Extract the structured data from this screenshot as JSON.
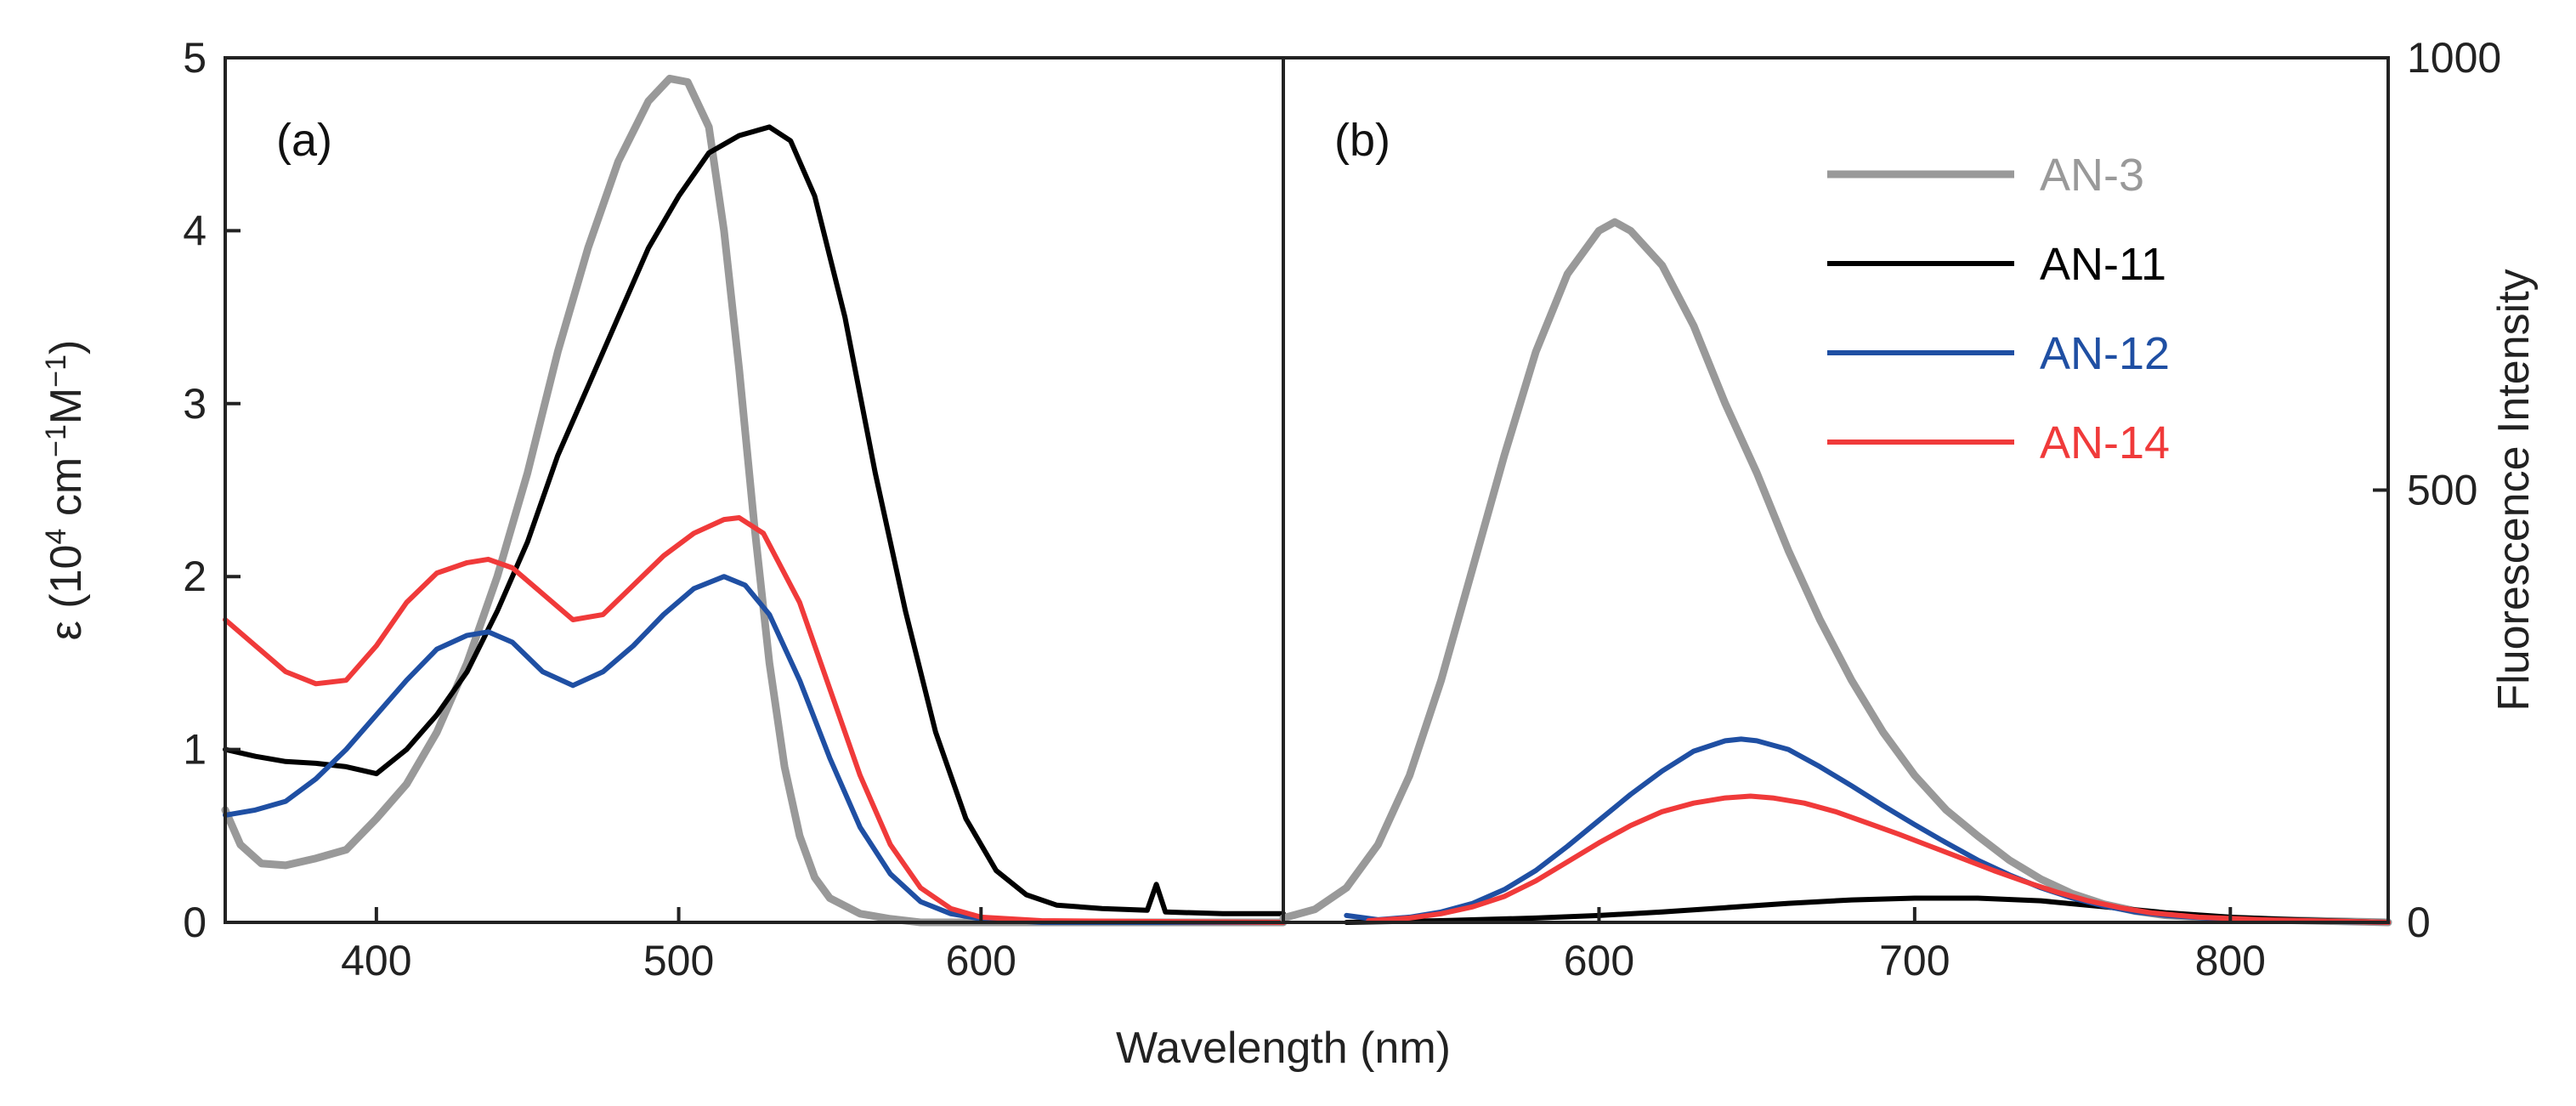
{
  "chart_data": [
    {
      "panel": "(a)",
      "type": "line",
      "xlabel": "Wavelength (nm)",
      "ylabel": "ε (10⁴ cm⁻¹M⁻¹)",
      "ylabel_parts": {
        "main": "ε (10",
        "sup1": "4",
        "mid": " cm",
        "sup2": "−1",
        "m": "M",
        "sup3": "−1",
        "end": ")"
      },
      "xlim": [
        350,
        700
      ],
      "ylim": [
        0,
        5
      ],
      "xticks": [
        "400",
        "500",
        "600"
      ],
      "xtick_values": [
        400,
        500,
        600
      ],
      "yticks": [
        "0",
        "1",
        "2",
        "3",
        "4",
        "5"
      ],
      "ytick_values": [
        0,
        1,
        2,
        3,
        4,
        5
      ],
      "series": [
        {
          "name": "AN-3",
          "color": "#999999",
          "width": 9,
          "points": [
            [
              350,
              0.65
            ],
            [
              355,
              0.45
            ],
            [
              362,
              0.34
            ],
            [
              370,
              0.33
            ],
            [
              380,
              0.37
            ],
            [
              390,
              0.42
            ],
            [
              400,
              0.6
            ],
            [
              410,
              0.8
            ],
            [
              420,
              1.1
            ],
            [
              430,
              1.5
            ],
            [
              440,
              2.0
            ],
            [
              450,
              2.6
            ],
            [
              460,
              3.3
            ],
            [
              470,
              3.9
            ],
            [
              480,
              4.4
            ],
            [
              490,
              4.75
            ],
            [
              497,
              4.88
            ],
            [
              503,
              4.86
            ],
            [
              510,
              4.6
            ],
            [
              515,
              4.0
            ],
            [
              520,
              3.2
            ],
            [
              525,
              2.3
            ],
            [
              530,
              1.5
            ],
            [
              535,
              0.9
            ],
            [
              540,
              0.5
            ],
            [
              545,
              0.26
            ],
            [
              550,
              0.14
            ],
            [
              560,
              0.05
            ],
            [
              570,
              0.02
            ],
            [
              580,
              0.0
            ],
            [
              700,
              0.0
            ]
          ]
        },
        {
          "name": "AN-11",
          "color": "#000000",
          "width": 6,
          "points": [
            [
              350,
              1.0
            ],
            [
              360,
              0.96
            ],
            [
              370,
              0.93
            ],
            [
              380,
              0.92
            ],
            [
              390,
              0.9
            ],
            [
              400,
              0.86
            ],
            [
              410,
              1.0
            ],
            [
              420,
              1.2
            ],
            [
              430,
              1.45
            ],
            [
              440,
              1.8
            ],
            [
              450,
              2.2
            ],
            [
              460,
              2.7
            ],
            [
              470,
              3.1
            ],
            [
              480,
              3.5
            ],
            [
              490,
              3.9
            ],
            [
              500,
              4.2
            ],
            [
              510,
              4.45
            ],
            [
              520,
              4.55
            ],
            [
              530,
              4.6
            ],
            [
              537,
              4.52
            ],
            [
              545,
              4.2
            ],
            [
              555,
              3.5
            ],
            [
              565,
              2.6
            ],
            [
              575,
              1.8
            ],
            [
              585,
              1.1
            ],
            [
              595,
              0.6
            ],
            [
              605,
              0.3
            ],
            [
              615,
              0.16
            ],
            [
              625,
              0.1
            ],
            [
              640,
              0.08
            ],
            [
              655,
              0.07
            ],
            [
              658,
              0.22
            ],
            [
              661,
              0.06
            ],
            [
              680,
              0.05
            ],
            [
              700,
              0.05
            ]
          ]
        },
        {
          "name": "AN-12",
          "color": "#1f4fa3",
          "width": 6,
          "points": [
            [
              350,
              0.62
            ],
            [
              360,
              0.65
            ],
            [
              370,
              0.7
            ],
            [
              380,
              0.83
            ],
            [
              390,
              1.0
            ],
            [
              400,
              1.2
            ],
            [
              410,
              1.4
            ],
            [
              420,
              1.58
            ],
            [
              430,
              1.66
            ],
            [
              437,
              1.68
            ],
            [
              445,
              1.62
            ],
            [
              455,
              1.45
            ],
            [
              465,
              1.37
            ],
            [
              475,
              1.45
            ],
            [
              485,
              1.6
            ],
            [
              495,
              1.78
            ],
            [
              505,
              1.93
            ],
            [
              515,
              2.0
            ],
            [
              522,
              1.95
            ],
            [
              530,
              1.78
            ],
            [
              540,
              1.4
            ],
            [
              550,
              0.95
            ],
            [
              560,
              0.55
            ],
            [
              570,
              0.28
            ],
            [
              580,
              0.12
            ],
            [
              590,
              0.05
            ],
            [
              600,
              0.02
            ],
            [
              620,
              0.0
            ],
            [
              700,
              0.0
            ]
          ]
        },
        {
          "name": "AN-14",
          "color": "#f03a3a",
          "width": 6,
          "points": [
            [
              350,
              1.75
            ],
            [
              360,
              1.6
            ],
            [
              370,
              1.45
            ],
            [
              380,
              1.38
            ],
            [
              390,
              1.4
            ],
            [
              400,
              1.6
            ],
            [
              410,
              1.85
            ],
            [
              420,
              2.02
            ],
            [
              430,
              2.08
            ],
            [
              437,
              2.1
            ],
            [
              445,
              2.05
            ],
            [
              455,
              1.9
            ],
            [
              465,
              1.75
            ],
            [
              475,
              1.78
            ],
            [
              485,
              1.95
            ],
            [
              495,
              2.12
            ],
            [
              505,
              2.25
            ],
            [
              515,
              2.33
            ],
            [
              520,
              2.34
            ],
            [
              528,
              2.25
            ],
            [
              540,
              1.85
            ],
            [
              550,
              1.35
            ],
            [
              560,
              0.85
            ],
            [
              570,
              0.45
            ],
            [
              580,
              0.2
            ],
            [
              590,
              0.08
            ],
            [
              600,
              0.03
            ],
            [
              620,
              0.01
            ],
            [
              700,
              0.0
            ]
          ]
        }
      ]
    },
    {
      "panel": "(b)",
      "type": "line",
      "xlabel": "Wavelength (nm)",
      "ylabel": "Fluorescence Intensity",
      "xlim": [
        500,
        850
      ],
      "ylim": [
        0,
        1000
      ],
      "xticks": [
        "600",
        "700",
        "800"
      ],
      "xtick_values": [
        600,
        700,
        800
      ],
      "yticks": [
        "0",
        "500",
        "1000"
      ],
      "ytick_values": [
        0,
        500,
        1000
      ],
      "legend": {
        "position": "top-right"
      },
      "series": [
        {
          "name": "AN-3",
          "color": "#999999",
          "width": 9,
          "points": [
            [
              500,
              5
            ],
            [
              510,
              15
            ],
            [
              520,
              40
            ],
            [
              530,
              90
            ],
            [
              540,
              170
            ],
            [
              550,
              280
            ],
            [
              560,
              410
            ],
            [
              570,
              540
            ],
            [
              580,
              660
            ],
            [
              590,
              750
            ],
            [
              600,
              800
            ],
            [
              605,
              810
            ],
            [
              610,
              800
            ],
            [
              620,
              760
            ],
            [
              630,
              690
            ],
            [
              640,
              600
            ],
            [
              650,
              520
            ],
            [
              660,
              430
            ],
            [
              670,
              350
            ],
            [
              680,
              280
            ],
            [
              690,
              220
            ],
            [
              700,
              170
            ],
            [
              710,
              130
            ],
            [
              720,
              100
            ],
            [
              730,
              72
            ],
            [
              740,
              50
            ],
            [
              750,
              33
            ],
            [
              760,
              21
            ],
            [
              770,
              13
            ],
            [
              780,
              8
            ],
            [
              800,
              4
            ],
            [
              850,
              0
            ]
          ]
        },
        {
          "name": "AN-11",
          "color": "#000000",
          "width": 6,
          "points": [
            [
              520,
              0
            ],
            [
              550,
              2
            ],
            [
              580,
              5
            ],
            [
              600,
              8
            ],
            [
              620,
              12
            ],
            [
              640,
              17
            ],
            [
              660,
              22
            ],
            [
              680,
              26
            ],
            [
              700,
              28
            ],
            [
              720,
              28
            ],
            [
              740,
              25
            ],
            [
              760,
              18
            ],
            [
              780,
              11
            ],
            [
              800,
              6
            ],
            [
              820,
              3
            ],
            [
              850,
              0
            ]
          ]
        },
        {
          "name": "AN-12",
          "color": "#1f4fa3",
          "width": 6,
          "points": [
            [
              520,
              8
            ],
            [
              530,
              3
            ],
            [
              540,
              6
            ],
            [
              550,
              12
            ],
            [
              560,
              22
            ],
            [
              570,
              38
            ],
            [
              580,
              60
            ],
            [
              590,
              88
            ],
            [
              600,
              118
            ],
            [
              610,
              148
            ],
            [
              620,
              175
            ],
            [
              630,
              198
            ],
            [
              640,
              210
            ],
            [
              645,
              212
            ],
            [
              650,
              210
            ],
            [
              660,
              200
            ],
            [
              670,
              180
            ],
            [
              680,
              158
            ],
            [
              690,
              135
            ],
            [
              700,
              113
            ],
            [
              710,
              92
            ],
            [
              720,
              72
            ],
            [
              730,
              55
            ],
            [
              740,
              40
            ],
            [
              750,
              28
            ],
            [
              760,
              19
            ],
            [
              770,
              12
            ],
            [
              780,
              8
            ],
            [
              800,
              3
            ],
            [
              850,
              0
            ]
          ]
        },
        {
          "name": "AN-14",
          "color": "#f03a3a",
          "width": 6,
          "points": [
            [
              527,
              2
            ],
            [
              540,
              5
            ],
            [
              550,
              10
            ],
            [
              560,
              18
            ],
            [
              570,
              30
            ],
            [
              580,
              48
            ],
            [
              590,
              70
            ],
            [
              600,
              92
            ],
            [
              610,
              112
            ],
            [
              620,
              128
            ],
            [
              630,
              138
            ],
            [
              640,
              144
            ],
            [
              648,
              146
            ],
            [
              655,
              144
            ],
            [
              665,
              138
            ],
            [
              675,
              128
            ],
            [
              685,
              115
            ],
            [
              695,
              102
            ],
            [
              705,
              88
            ],
            [
              715,
              74
            ],
            [
              725,
              60
            ],
            [
              735,
              47
            ],
            [
              745,
              35
            ],
            [
              755,
              25
            ],
            [
              765,
              17
            ],
            [
              775,
              11
            ],
            [
              790,
              6
            ],
            [
              810,
              3
            ],
            [
              850,
              0
            ]
          ]
        }
      ]
    }
  ]
}
